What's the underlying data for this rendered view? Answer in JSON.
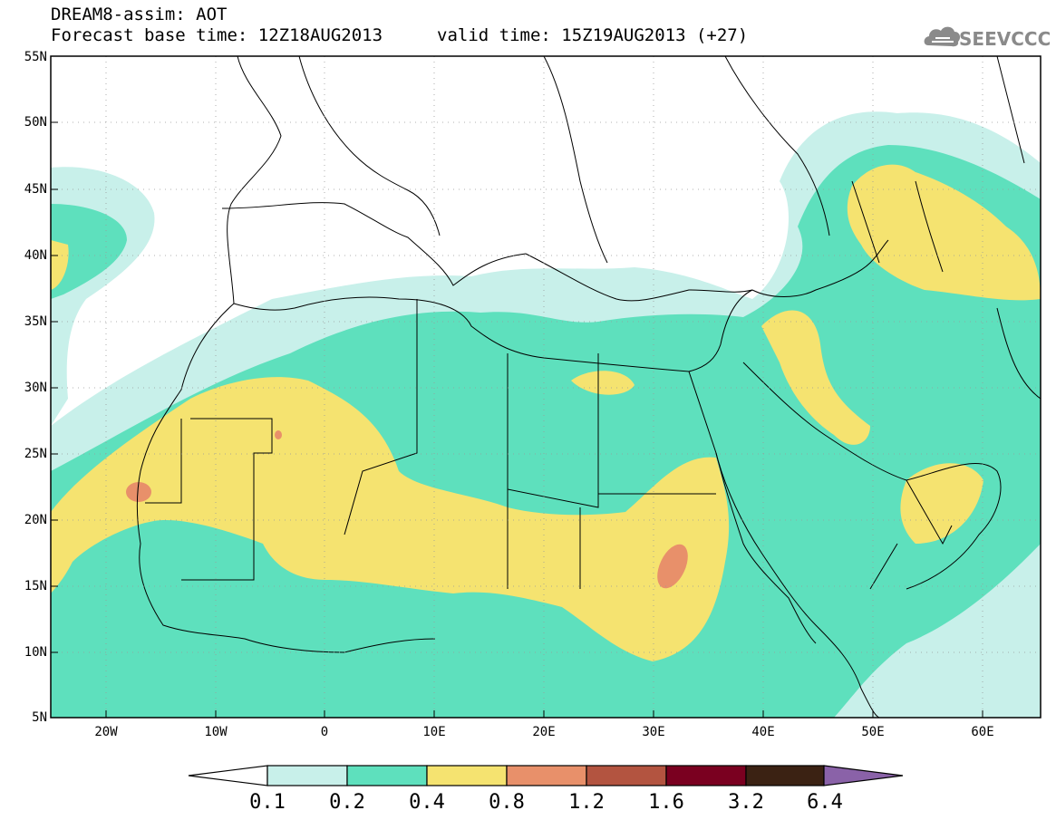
{
  "header": {
    "title": "DREAM8-assim: AOT",
    "base_time": "Forecast base time: 12Z18AUG2013",
    "valid_time": "valid time: 15Z19AUG2013 (+27)"
  },
  "logo": {
    "text": "SEEVCCC",
    "icon": "cloud-logo-icon"
  },
  "map": {
    "lat_labels": [
      "55N",
      "50N",
      "45N",
      "40N",
      "35N",
      "30N",
      "25N",
      "20N",
      "15N",
      "10N",
      "5N"
    ],
    "lon_labels": [
      "20W",
      "10W",
      "0",
      "10E",
      "20E",
      "30E",
      "40E",
      "50E",
      "60E"
    ],
    "grid": true
  },
  "colorbar": {
    "levels": [
      "0.1",
      "0.2",
      "0.4",
      "0.8",
      "1.2",
      "1.6",
      "3.2",
      "6.4"
    ],
    "colors": [
      "#ffffff",
      "#c8f0ea",
      "#5ee0bd",
      "#f5e370",
      "#e8906a",
      "#b35440",
      "#7a0020",
      "#3b2213",
      "#8a62a8"
    ]
  },
  "fields": {
    "lightest": "#c8f0ea",
    "green": "#5ee0bd",
    "yellow": "#f5e370",
    "orange": "#e8906a"
  }
}
